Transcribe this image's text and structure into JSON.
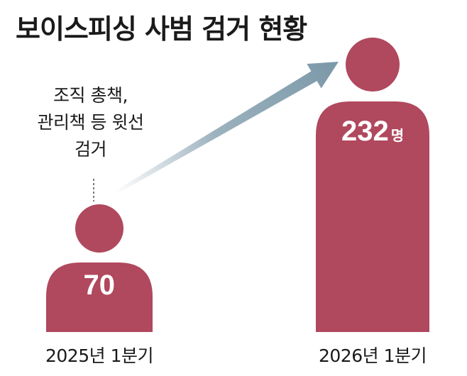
{
  "title": "보이스피싱 사범 검거 현황",
  "annotation": [
    "조직 총책,",
    "관리책 등 윗선",
    "검거"
  ],
  "colors": {
    "figure": "#b0485e",
    "arrow": "#7b98a8",
    "text": "#1a1a1a",
    "value_text": "#ffffff"
  },
  "chart_data": {
    "type": "bar",
    "title": "보이스피싱 사범 검거 현황",
    "categories": [
      "2025년 1분기",
      "2026년 1분기"
    ],
    "values": [
      70,
      232
    ],
    "value_labels": [
      "70",
      "232"
    ],
    "unit": "명",
    "xlabel": "",
    "ylabel": "",
    "ylim": [
      0,
      232
    ]
  }
}
